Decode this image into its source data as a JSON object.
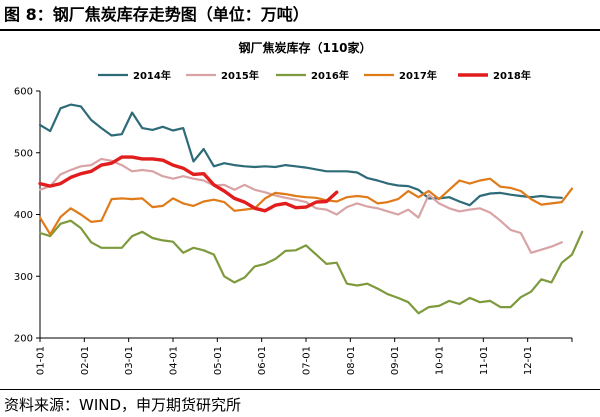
{
  "figure": {
    "title": "图 8：钢厂焦炭库存走势图（单位：万吨）",
    "source": "资料来源：WIND，申万期货研究所"
  },
  "chart_data": {
    "type": "line",
    "title": "钢厂焦炭库存（110家）",
    "xlabel": "",
    "ylabel": "",
    "ylim": [
      200,
      600
    ],
    "yticks": [
      200,
      300,
      400,
      500,
      600
    ],
    "x_tick_labels": [
      "01-01",
      "02-01",
      "03-01",
      "04-01",
      "05-01",
      "06-01",
      "07-01",
      "08-01",
      "09-01",
      "10-01",
      "11-01",
      "12-01"
    ],
    "x_week_range": [
      0,
      52
    ],
    "grid": false,
    "legend_position": "top",
    "series": [
      {
        "name": "2014年",
        "color": "#2e6b78",
        "values": [
          545,
          535,
          572,
          578,
          575,
          553,
          540,
          528,
          530,
          565,
          540,
          537,
          542,
          536,
          540,
          486,
          506,
          478,
          483,
          480,
          478,
          477,
          478,
          477,
          480,
          478,
          476,
          473,
          470,
          470,
          470,
          468,
          459,
          455,
          450,
          447,
          446,
          440,
          426,
          426,
          428,
          421,
          415,
          430,
          434,
          435,
          432,
          430,
          428,
          430,
          428,
          427
        ]
      },
      {
        "name": "2015年",
        "color": "#d9a3a6",
        "values": [
          440,
          446,
          465,
          472,
          478,
          480,
          490,
          487,
          480,
          470,
          472,
          470,
          462,
          458,
          462,
          458,
          455,
          447,
          448,
          440,
          448,
          440,
          436,
          431,
          427,
          424,
          420,
          410,
          408,
          400,
          412,
          418,
          413,
          410,
          405,
          400,
          408,
          395,
          432,
          418,
          410,
          405,
          408,
          410,
          403,
          390,
          375,
          370,
          338,
          343,
          348,
          355
        ]
      },
      {
        "name": "2016年",
        "color": "#7d9a3d",
        "values": [
          370,
          365,
          385,
          390,
          378,
          355,
          346,
          346,
          346,
          365,
          372,
          362,
          358,
          356,
          338,
          346,
          342,
          335,
          300,
          290,
          298,
          316,
          320,
          328,
          341,
          342,
          350,
          335,
          320,
          322,
          288,
          285,
          288,
          280,
          271,
          265,
          258,
          240,
          250,
          252,
          260,
          255,
          265,
          258,
          260,
          250,
          250,
          266,
          275,
          295,
          290,
          322,
          335,
          372
        ]
      },
      {
        "name": "2017年",
        "color": "#e07b1a",
        "values": [
          395,
          368,
          396,
          410,
          400,
          388,
          390,
          425,
          426,
          425,
          426,
          412,
          414,
          426,
          418,
          414,
          421,
          424,
          420,
          406,
          408,
          410,
          426,
          435,
          433,
          430,
          428,
          427,
          423,
          421,
          428,
          430,
          428,
          418,
          420,
          425,
          438,
          428,
          438,
          425,
          440,
          455,
          450,
          455,
          458,
          445,
          443,
          438,
          425,
          416,
          418,
          420,
          442
        ]
      },
      {
        "name": "2018年",
        "color": "#e11d1d",
        "values": [
          450,
          446,
          450,
          460,
          466,
          470,
          480,
          483,
          493,
          493,
          490,
          490,
          488,
          480,
          475,
          465,
          466,
          448,
          438,
          426,
          420,
          410,
          406,
          415,
          418,
          411,
          412,
          420,
          421,
          436
        ]
      }
    ]
  }
}
